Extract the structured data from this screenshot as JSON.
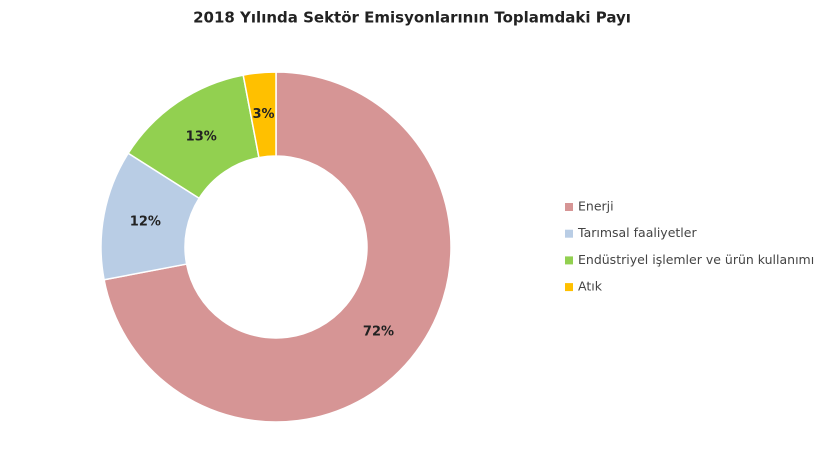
{
  "chart_data": {
    "type": "donut",
    "title": "2018 Yılında Sektör Emisyonlarının Toplamdaki Payı",
    "categories": [
      "Enerji",
      "Tarımsal faaliyetler",
      "Endüstriyel işlemler ve ürün kullanımı",
      "Atık"
    ],
    "values": [
      72,
      12,
      13,
      3
    ],
    "value_labels": [
      "72%",
      "12%",
      "13%",
      "3%"
    ],
    "colors": [
      "#d69595",
      "#b9cde5",
      "#92d050",
      "#ffc000"
    ],
    "legend": "right"
  }
}
